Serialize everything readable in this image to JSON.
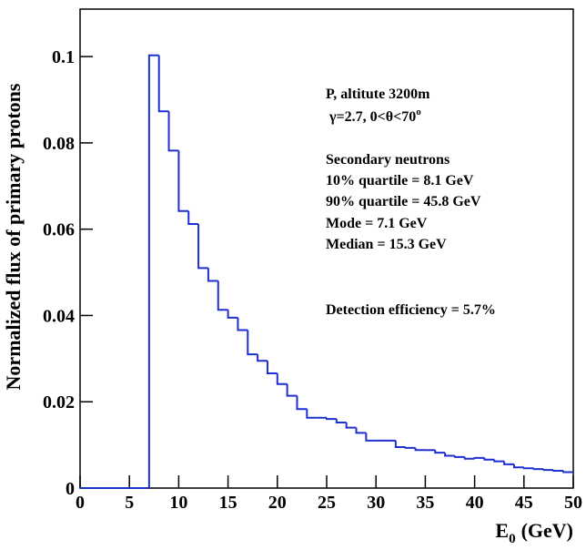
{
  "chart_data": {
    "type": "histogram",
    "y_label": "Normalized flux of primary protons",
    "x_label": "E",
    "x_label_sub": "0",
    "x_label_unit": "(GeV)",
    "annotations": [
      "P, altitute 3200m",
      "Secondary neutrons",
      "10% quartile = 8.1 GeV",
      "90% quartile = 45.8 GeV",
      "Mode = 7.1 GeV",
      "Median = 15.3 GeV",
      "Detection efficiency = 5.7%"
    ],
    "angle_note": "γ=2.7, 0<θ<70",
    "angle_note_sup": "o",
    "color": "#1f2fd0",
    "bins": [
      0,
      1,
      2,
      3,
      4,
      5,
      6,
      7,
      8,
      9,
      10,
      11,
      12,
      13,
      14,
      15,
      16,
      17,
      18,
      19,
      20,
      21,
      22,
      23,
      24,
      25,
      26,
      27,
      28,
      29,
      30,
      31,
      32,
      33,
      34,
      35,
      36,
      37,
      38,
      39,
      40,
      41,
      42,
      43,
      44,
      45,
      46,
      47,
      48,
      49,
      50
    ],
    "counts": [
      0,
      0,
      0,
      0,
      0,
      0,
      0,
      0.1003,
      0.0873,
      0.0782,
      0.0642,
      0.0612,
      0.051,
      0.048,
      0.0413,
      0.0395,
      0.0366,
      0.031,
      0.0295,
      0.0266,
      0.0241,
      0.0214,
      0.0183,
      0.0163,
      0.0163,
      0.016,
      0.0152,
      0.014,
      0.0128,
      0.011,
      0.011,
      0.011,
      0.0095,
      0.0093,
      0.0088,
      0.0088,
      0.0082,
      0.0075,
      0.0072,
      0.0068,
      0.007,
      0.0066,
      0.0062,
      0.0055,
      0.0048,
      0.0046,
      0.0044,
      0.0042,
      0.004,
      0.0037
    ],
    "xlim": [
      0,
      50
    ],
    "ylim": [
      0,
      0.111
    ],
    "xticks": [
      0,
      5,
      10,
      15,
      20,
      25,
      30,
      35,
      40,
      45,
      50
    ],
    "yticks": [
      0,
      0.02,
      0.04,
      0.06,
      0.08,
      0.1
    ]
  }
}
